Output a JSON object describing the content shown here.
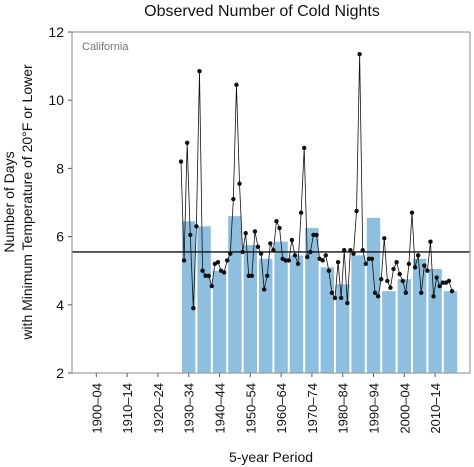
{
  "chart_data": {
    "type": "bar_line",
    "title": "Observed Number of Cold Nights",
    "annotation": "California",
    "y_label": [
      "Number of Days",
      "with Minimum Temperature of 20°F or Lower"
    ],
    "x_label": "5-year Period",
    "categories": [
      "1900–04",
      null,
      "1910–14",
      null,
      "1920–24",
      null,
      "1930–34",
      null,
      "1940–44",
      null,
      "1950–54",
      null,
      "1960–64",
      null,
      "1970–74",
      null,
      "1980–84",
      null,
      "1990–94",
      null,
      "2000–04",
      null,
      "2010–14",
      null
    ],
    "bar_color": "#8fbfdf",
    "values": [
      null,
      null,
      null,
      null,
      null,
      null,
      6.45,
      6.3,
      5.0,
      6.6,
      5.75,
      5.35,
      5.85,
      5.45,
      6.25,
      5.1,
      4.6,
      5.45,
      6.55,
      4.4,
      4.75,
      5.35,
      5.05,
      4.4
    ],
    "line": {
      "color": "#111111",
      "x": [
        1930,
        1931,
        1932,
        1933,
        1934,
        1935,
        1936,
        1937,
        1938,
        1939,
        1940,
        1941,
        1942,
        1943,
        1944,
        1945,
        1946,
        1947,
        1948,
        1949,
        1950,
        1951,
        1952,
        1953,
        1954,
        1955,
        1956,
        1957,
        1958,
        1959,
        1960,
        1961,
        1962,
        1963,
        1964,
        1965,
        1966,
        1967,
        1968,
        1969,
        1970,
        1971,
        1972,
        1973,
        1974,
        1975,
        1976,
        1977,
        1978,
        1979,
        1980,
        1981,
        1982,
        1983,
        1984,
        1985,
        1986,
        1987,
        1988,
        1989,
        1990,
        1991,
        1992,
        1993,
        1994,
        1995,
        1996,
        1997,
        1998,
        1999,
        2000,
        2001,
        2002,
        2003,
        2004,
        2005,
        2006,
        2007,
        2008,
        2009,
        2010,
        2011,
        2012,
        2013,
        2014,
        2015,
        2016,
        2017,
        2018
      ],
      "values": [
        8.2,
        5.3,
        8.75,
        6.05,
        3.9,
        6.3,
        10.85,
        5.0,
        4.85,
        4.85,
        4.55,
        5.2,
        5.25,
        5.0,
        4.95,
        5.3,
        5.5,
        7.1,
        10.45,
        7.55,
        5.55,
        6.1,
        4.85,
        4.85,
        6.15,
        5.7,
        5.5,
        4.45,
        4.85,
        5.8,
        5.6,
        6.45,
        6.25,
        5.35,
        5.3,
        5.3,
        5.9,
        5.45,
        5.2,
        6.7,
        8.6,
        5.4,
        5.55,
        6.05,
        6.05,
        5.35,
        5.3,
        5.45,
        5.0,
        4.35,
        4.2,
        5.25,
        4.2,
        5.6,
        4.05,
        5.6,
        5.5,
        6.75,
        11.35,
        5.6,
        5.2,
        5.35,
        5.35,
        4.35,
        4.25,
        4.75,
        5.95,
        4.7,
        4.5,
        5.05,
        5.25,
        4.9,
        4.7,
        4.35,
        5.2,
        6.7,
        5.1,
        5.45,
        4.35,
        5.15,
        5.0,
        5.85,
        4.25,
        4.8,
        4.55,
        4.65,
        4.65,
        4.7,
        4.4
      ]
    },
    "reference_line": 5.55,
    "ylim": [
      2,
      12
    ],
    "yticks": [
      2,
      4,
      6,
      8,
      10,
      12
    ]
  }
}
